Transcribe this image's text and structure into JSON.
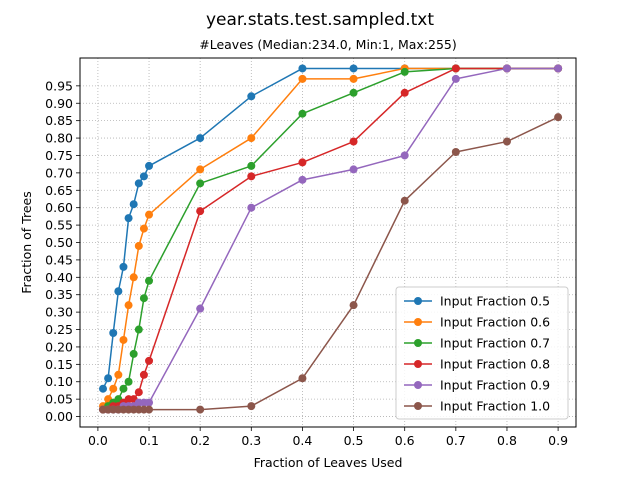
{
  "chart_data": {
    "type": "line",
    "title": "year.stats.test.sampled.txt",
    "subtitle": "#Leaves (Median:234.0, Min:1, Max:255)",
    "xlabel": "Fraction of Leaves Used",
    "ylabel": "Fraction of Trees",
    "xlim": [
      -0.035,
      0.935
    ],
    "ylim": [
      -0.03,
      1.03
    ],
    "x_ticks": [
      0.0,
      0.1,
      0.2,
      0.3,
      0.4,
      0.5,
      0.6,
      0.7,
      0.8,
      0.9
    ],
    "x_tick_labels": [
      "0.0",
      "0.1",
      "0.2",
      "0.3",
      "0.4",
      "0.5",
      "0.6",
      "0.7",
      "0.8",
      "0.9"
    ],
    "y_ticks": [
      0.0,
      0.05,
      0.1,
      0.15,
      0.2,
      0.25,
      0.3,
      0.35,
      0.4,
      0.45,
      0.5,
      0.55,
      0.6,
      0.65,
      0.7,
      0.75,
      0.8,
      0.85,
      0.9,
      0.95
    ],
    "y_tick_labels": [
      "0.00",
      "0.05",
      "0.10",
      "0.15",
      "0.20",
      "0.25",
      "0.30",
      "0.35",
      "0.40",
      "0.45",
      "0.50",
      "0.55",
      "0.60",
      "0.65",
      "0.70",
      "0.75",
      "0.80",
      "0.85",
      "0.90",
      "0.95"
    ],
    "grid": true,
    "grid_style": "dotted",
    "legend_position": "lower-right",
    "x": [
      0.01,
      0.02,
      0.03,
      0.04,
      0.05,
      0.06,
      0.07,
      0.08,
      0.09,
      0.1,
      0.2,
      0.3,
      0.4,
      0.5,
      0.6,
      0.7,
      0.8,
      0.9
    ],
    "series": [
      {
        "name": "Input Fraction 0.5",
        "color": "#1f77b4",
        "values": [
          0.08,
          0.11,
          0.24,
          0.36,
          0.43,
          0.57,
          0.61,
          0.67,
          0.69,
          0.72,
          0.8,
          0.92,
          1.0,
          1.0,
          1.0,
          1.0,
          1.0,
          1.0
        ]
      },
      {
        "name": "Input Fraction 0.6",
        "color": "#ff7f0e",
        "values": [
          0.03,
          0.05,
          0.08,
          0.12,
          0.22,
          0.32,
          0.4,
          0.49,
          0.54,
          0.58,
          0.71,
          0.8,
          0.97,
          0.97,
          1.0,
          1.0,
          1.0,
          1.0
        ]
      },
      {
        "name": "Input Fraction 0.7",
        "color": "#2ca02c",
        "values": [
          0.02,
          0.03,
          0.04,
          0.05,
          0.08,
          0.1,
          0.18,
          0.25,
          0.34,
          0.39,
          0.67,
          0.72,
          0.87,
          0.93,
          0.99,
          1.0,
          1.0,
          1.0
        ]
      },
      {
        "name": "Input Fraction 0.8",
        "color": "#d62728",
        "values": [
          0.02,
          0.02,
          0.03,
          0.03,
          0.04,
          0.05,
          0.05,
          0.07,
          0.12,
          0.16,
          0.59,
          0.69,
          0.73,
          0.79,
          0.93,
          1.0,
          1.0,
          1.0
        ]
      },
      {
        "name": "Input Fraction 0.9",
        "color": "#9467bd",
        "values": [
          0.02,
          0.02,
          0.02,
          0.02,
          0.03,
          0.03,
          0.03,
          0.04,
          0.04,
          0.04,
          0.31,
          0.6,
          0.68,
          0.71,
          0.75,
          0.97,
          1.0,
          1.0
        ]
      },
      {
        "name": "Input Fraction 1.0",
        "color": "#8c564b",
        "values": [
          0.02,
          0.02,
          0.02,
          0.02,
          0.02,
          0.02,
          0.02,
          0.02,
          0.02,
          0.02,
          0.02,
          0.03,
          0.11,
          0.32,
          0.62,
          0.76,
          0.79,
          0.86
        ]
      }
    ]
  }
}
